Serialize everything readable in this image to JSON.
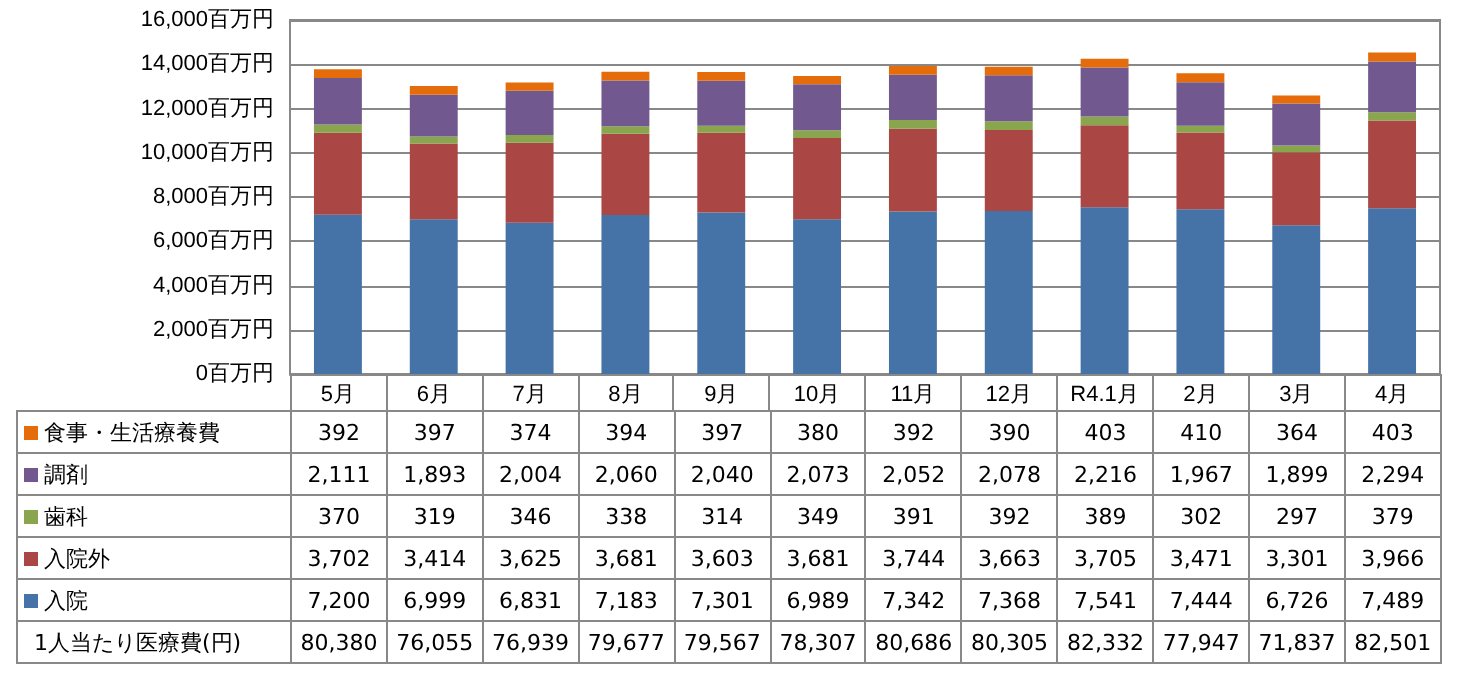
{
  "chart_data": {
    "type": "bar",
    "stacked": true,
    "categories": [
      "5月",
      "6月",
      "7月",
      "8月",
      "9月",
      "10月",
      "11月",
      "12月",
      "R4.1月",
      "2月",
      "3月",
      "4月"
    ],
    "series": [
      {
        "name": "入院",
        "color": "#4572a7",
        "values": [
          7200,
          6999,
          6831,
          7183,
          7301,
          6989,
          7342,
          7368,
          7541,
          7444,
          6726,
          7489
        ],
        "value_labels": [
          "7,200",
          "6,999",
          "6,831",
          "7,183",
          "7,301",
          "6,989",
          "7,342",
          "7,368",
          "7,541",
          "7,444",
          "6,726",
          "7,489"
        ]
      },
      {
        "name": "入院外",
        "color": "#aa4643",
        "values": [
          3702,
          3414,
          3625,
          3681,
          3603,
          3681,
          3744,
          3663,
          3705,
          3471,
          3301,
          3966
        ],
        "value_labels": [
          "3,702",
          "3,414",
          "3,625",
          "3,681",
          "3,603",
          "3,681",
          "3,744",
          "3,663",
          "3,705",
          "3,471",
          "3,301",
          "3,966"
        ]
      },
      {
        "name": "歯科",
        "color": "#89a54e",
        "values": [
          370,
          319,
          346,
          338,
          314,
          349,
          391,
          392,
          389,
          302,
          297,
          379
        ],
        "value_labels": [
          "370",
          "319",
          "346",
          "338",
          "314",
          "349",
          "391",
          "392",
          "389",
          "302",
          "297",
          "379"
        ]
      },
      {
        "name": "調剤",
        "color": "#71588f",
        "values": [
          2111,
          1893,
          2004,
          2060,
          2040,
          2073,
          2052,
          2078,
          2216,
          1967,
          1899,
          2294
        ],
        "value_labels": [
          "2,111",
          "1,893",
          "2,004",
          "2,060",
          "2,040",
          "2,073",
          "2,052",
          "2,078",
          "2,216",
          "1,967",
          "1,899",
          "2,294"
        ]
      },
      {
        "name": "食事・生活療養費",
        "color": "#e46c0a",
        "values": [
          392,
          397,
          374,
          394,
          397,
          380,
          392,
          390,
          403,
          410,
          364,
          403
        ],
        "value_labels": [
          "392",
          "397",
          "374",
          "394",
          "397",
          "380",
          "392",
          "390",
          "403",
          "410",
          "364",
          "403"
        ]
      }
    ],
    "ylim": [
      0,
      16000
    ],
    "yticks": [
      {
        "value": 0,
        "label": "0百万円"
      },
      {
        "value": 2000,
        "label": "2,000百万円"
      },
      {
        "value": 4000,
        "label": "4,000百万円"
      },
      {
        "value": 6000,
        "label": "6,000百万円"
      },
      {
        "value": 8000,
        "label": "8,000百万円"
      },
      {
        "value": 10000,
        "label": "10,000百万円"
      },
      {
        "value": 12000,
        "label": "12,000百万円"
      },
      {
        "value": 14000,
        "label": "14,000百万円"
      },
      {
        "value": 16000,
        "label": "16,000百万円"
      }
    ],
    "grid": "y",
    "legend": "bottom",
    "annotations": [
      "1人当たり医療費(円)",
      "80,380",
      "76,055",
      "76,939",
      "79,677",
      "79,567",
      "78,307",
      "80,686",
      "80,305",
      "82,332",
      "77,947",
      "71,837",
      "82,501"
    ]
  }
}
